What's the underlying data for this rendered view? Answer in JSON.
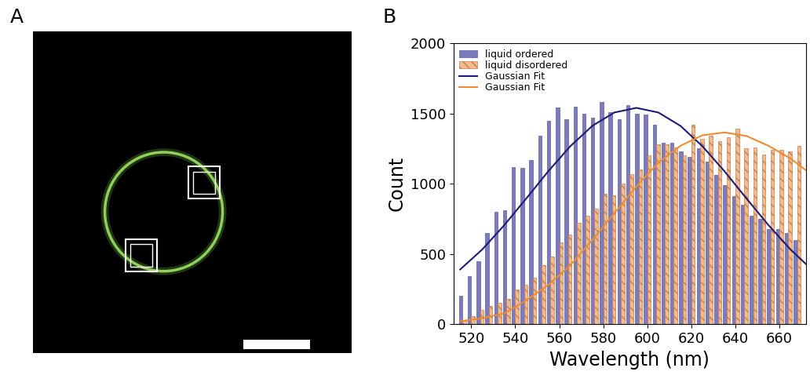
{
  "panel_labels": [
    "A",
    "B"
  ],
  "chart_data": {
    "type": "bar",
    "x_label": "Wavelength (nm)",
    "y_label": "Count",
    "xlim": [
      512,
      672
    ],
    "xticks": [
      520,
      540,
      560,
      580,
      600,
      620,
      640,
      660
    ],
    "ylim": [
      0,
      2000
    ],
    "yticks": [
      0,
      500,
      1000,
      1500,
      2000
    ],
    "legend": "upper left",
    "series": [
      {
        "name": "liquid ordered",
        "type": "bar",
        "color": "#7c7cbd",
        "x": [
          516,
          520,
          524,
          528,
          532,
          536,
          540,
          544,
          548,
          552,
          556,
          560,
          564,
          568,
          572,
          576,
          580,
          584,
          588,
          592,
          596,
          600,
          604,
          608,
          612,
          616,
          620,
          624,
          628,
          632,
          636,
          640,
          644,
          648,
          652,
          656,
          660,
          664,
          668
        ],
        "values": [
          200,
          340,
          450,
          650,
          800,
          810,
          1120,
          1110,
          1170,
          1340,
          1450,
          1540,
          1460,
          1550,
          1500,
          1470,
          1580,
          1510,
          1460,
          1560,
          1500,
          1490,
          1420,
          1290,
          1290,
          1230,
          1190,
          1250,
          1160,
          1060,
          990,
          910,
          850,
          770,
          750,
          680,
          680,
          650,
          600
        ]
      },
      {
        "name": "liquid disordered",
        "type": "bar",
        "color": "#f6ba8c",
        "x": [
          516,
          520,
          524,
          528,
          532,
          536,
          540,
          544,
          548,
          552,
          556,
          560,
          564,
          568,
          572,
          576,
          580,
          584,
          588,
          592,
          596,
          600,
          604,
          608,
          612,
          616,
          620,
          624,
          628,
          632,
          636,
          640,
          644,
          648,
          652,
          656,
          660,
          664,
          668
        ],
        "values": [
          30,
          60,
          100,
          130,
          150,
          180,
          250,
          280,
          330,
          420,
          480,
          580,
          640,
          720,
          770,
          820,
          930,
          920,
          1000,
          1070,
          1100,
          1200,
          1280,
          1280,
          1260,
          1200,
          1420,
          1320,
          1340,
          1300,
          1330,
          1390,
          1250,
          1260,
          1210,
          1240,
          1240,
          1230,
          1270
        ]
      },
      {
        "name": "Gaussian Fit",
        "type": "line",
        "color": "#1c1c78",
        "x": [
          515,
          525,
          535,
          545,
          555,
          565,
          575,
          585,
          595,
          605,
          615,
          625,
          635,
          645,
          655,
          665,
          675
        ],
        "values": [
          390,
          532,
          705,
          895,
          1089,
          1267,
          1412,
          1507,
          1540,
          1507,
          1412,
          1267,
          1089,
          895,
          705,
          532,
          384
        ]
      },
      {
        "name": "Gaussian Fit",
        "type": "line",
        "color": "#f08a30",
        "x": [
          515,
          525,
          535,
          545,
          555,
          565,
          575,
          585,
          595,
          605,
          615,
          625,
          635,
          645,
          655,
          665,
          675
        ],
        "values": [
          22,
          42,
          78,
          170,
          280,
          420,
          600,
          790,
          980,
          1150,
          1270,
          1345,
          1365,
          1340,
          1270,
          1180,
          1060
        ]
      }
    ]
  }
}
